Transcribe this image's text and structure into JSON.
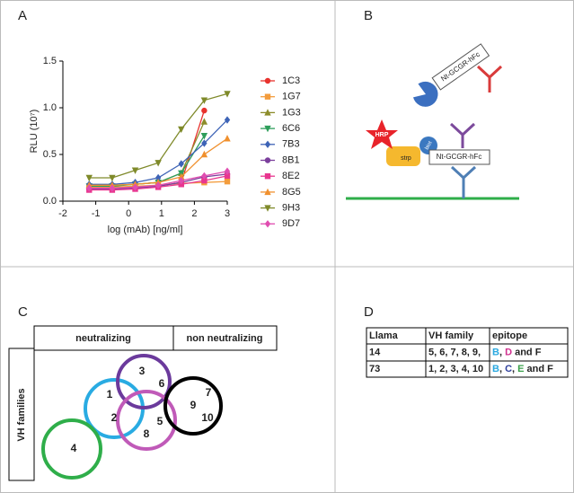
{
  "panels": {
    "a": "A",
    "b": "B",
    "c": "C",
    "d": "D"
  },
  "chart_data": {
    "type": "line",
    "y_label": "RLU (10⁷)",
    "x_label": "log (mAb) [ng/ml]",
    "x": [
      -1.2,
      -0.5,
      0.2,
      0.9,
      1.6,
      2.3,
      3.0
    ],
    "xlim": [
      -2,
      3
    ],
    "xticks": [
      -2,
      -1,
      0,
      1,
      2,
      3
    ],
    "ylim": [
      0,
      1.5
    ],
    "yticks": [
      {
        "value": 0,
        "label": "0.0"
      },
      {
        "value": 0.5,
        "label": "0.5"
      },
      {
        "value": 1,
        "label": "1.0"
      },
      {
        "value": 1.5,
        "label": "1.5"
      }
    ],
    "series": [
      {
        "name": "1C3",
        "color": "#e8322d",
        "marker": "circle",
        "values": [
          0.15,
          0.15,
          0.15,
          0.16,
          0.2,
          0.97,
          null
        ]
      },
      {
        "name": "1G7",
        "color": "#f39c3d",
        "marker": "square",
        "values": [
          0.15,
          0.15,
          0.16,
          0.17,
          0.19,
          0.2,
          0.21
        ]
      },
      {
        "name": "1G3",
        "color": "#8c8c2a",
        "marker": "triangle-up",
        "values": [
          0.17,
          0.17,
          0.18,
          0.2,
          0.3,
          0.85,
          null
        ]
      },
      {
        "name": "6C6",
        "color": "#2e9e5b",
        "marker": "triangle-down",
        "values": [
          0.16,
          0.16,
          0.18,
          0.2,
          0.3,
          0.7,
          null
        ]
      },
      {
        "name": "7B3",
        "color": "#3d63b6",
        "marker": "diamond",
        "values": [
          0.18,
          0.18,
          0.2,
          0.25,
          0.4,
          0.62,
          0.87
        ]
      },
      {
        "name": "8B1",
        "color": "#7b3f9c",
        "marker": "circle",
        "values": [
          0.13,
          0.13,
          0.14,
          0.16,
          0.2,
          0.26,
          0.29
        ]
      },
      {
        "name": "8E2",
        "color": "#e8368f",
        "marker": "square",
        "values": [
          0.12,
          0.12,
          0.13,
          0.15,
          0.18,
          0.22,
          0.27
        ]
      },
      {
        "name": "8G5",
        "color": "#f0902e",
        "marker": "triangle-up",
        "values": [
          0.17,
          0.17,
          0.18,
          0.2,
          0.26,
          0.5,
          0.67
        ]
      },
      {
        "name": "9H3",
        "color": "#7f8a2a",
        "marker": "triangle-down",
        "values": [
          0.25,
          0.25,
          0.33,
          0.41,
          0.77,
          1.08,
          1.15
        ]
      },
      {
        "name": "9D7",
        "color": "#e04db0",
        "marker": "diamond",
        "values": [
          0.14,
          0.14,
          0.15,
          0.17,
          0.22,
          0.27,
          0.32
        ]
      }
    ]
  },
  "panel_b": {
    "labels": [
      "Nt-GCGR-hFc",
      "HRP",
      "strp",
      "biot",
      "Nt-GCGR-hFc"
    ]
  },
  "panel_c": {
    "neutralizing": "neutralizing",
    "non_neutralizing": "non neutralizing",
    "vh_families": "VH families",
    "numbers": [
      "1",
      "2",
      "3",
      "4",
      "5",
      "6",
      "7",
      "8",
      "9",
      "10"
    ]
  },
  "panel_d": {
    "table": {
      "header": [
        "Llama",
        "VH family",
        "epitope"
      ],
      "rows": [
        [
          "14",
          "5, 6, 7, 8, 9,",
          [
            {
              "text": "B",
              "color": "#2aa8e0"
            },
            {
              "text": ", "
            },
            {
              "text": "D",
              "color": "#d0308f"
            },
            {
              "text": " and F"
            }
          ]
        ],
        [
          "73",
          "1, 2, 3, 4, 10",
          [
            {
              "text": "B",
              "color": "#2aa8e0"
            },
            {
              "text": ", "
            },
            {
              "text": "C",
              "color": "#2e3f9c"
            },
            {
              "text": ", "
            },
            {
              "text": "E",
              "color": "#3aa04a"
            },
            {
              "text": " and F"
            }
          ]
        ]
      ]
    }
  }
}
